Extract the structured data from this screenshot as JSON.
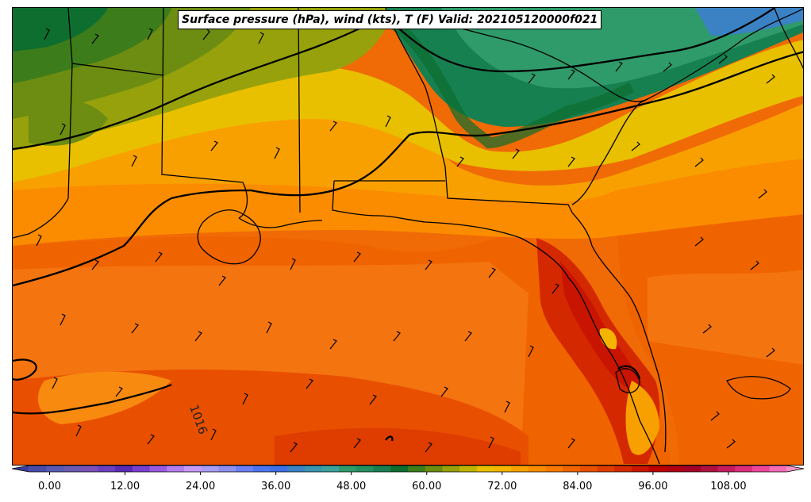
{
  "map": {
    "title": "Surface pressure (hPa), wind (kts), T (F) Valid: 202105120000f021",
    "isobar_label": "1016"
  },
  "colorbar": {
    "min": -6,
    "max": 120,
    "colors": [
      "#3b3b9c",
      "#4a4aa8",
      "#5a5ab4",
      "#6a5ab0",
      "#7a50b8",
      "#6b3fbf",
      "#5b2ab5",
      "#7b3fd0",
      "#9a5ae0",
      "#b37ef0",
      "#c79af5",
      "#a99cf5",
      "#8f8ff0",
      "#6c7ff5",
      "#4d74f0",
      "#3d6fe6",
      "#3a82c4",
      "#3a95b0",
      "#3aa39a",
      "#2f9a6a",
      "#239060",
      "#178050",
      "#0d6e2f",
      "#3d7c1a",
      "#6c8c12",
      "#97a10b",
      "#bdb405",
      "#e8c000",
      "#f4b400",
      "#f8a000",
      "#fb8c00",
      "#f97800",
      "#f06400",
      "#e85000",
      "#df3c00",
      "#d42800",
      "#c81400",
      "#bc0000",
      "#b00010",
      "#a50025",
      "#b0103f",
      "#c71c5c",
      "#dd2d7a",
      "#ee4799",
      "#f56bb4",
      "#f890c8"
    ],
    "ticks": [
      {
        "value": 0,
        "label": "0.00"
      },
      {
        "value": 12,
        "label": "12.00"
      },
      {
        "value": 24,
        "label": "24.00"
      },
      {
        "value": 36,
        "label": "36.00"
      },
      {
        "value": 48,
        "label": "48.00"
      },
      {
        "value": 60,
        "label": "60.00"
      },
      {
        "value": 72,
        "label": "72.00"
      },
      {
        "value": 84,
        "label": "84.00"
      },
      {
        "value": 96,
        "label": "96.00"
      },
      {
        "value": 108,
        "label": "108.00"
      }
    ]
  }
}
